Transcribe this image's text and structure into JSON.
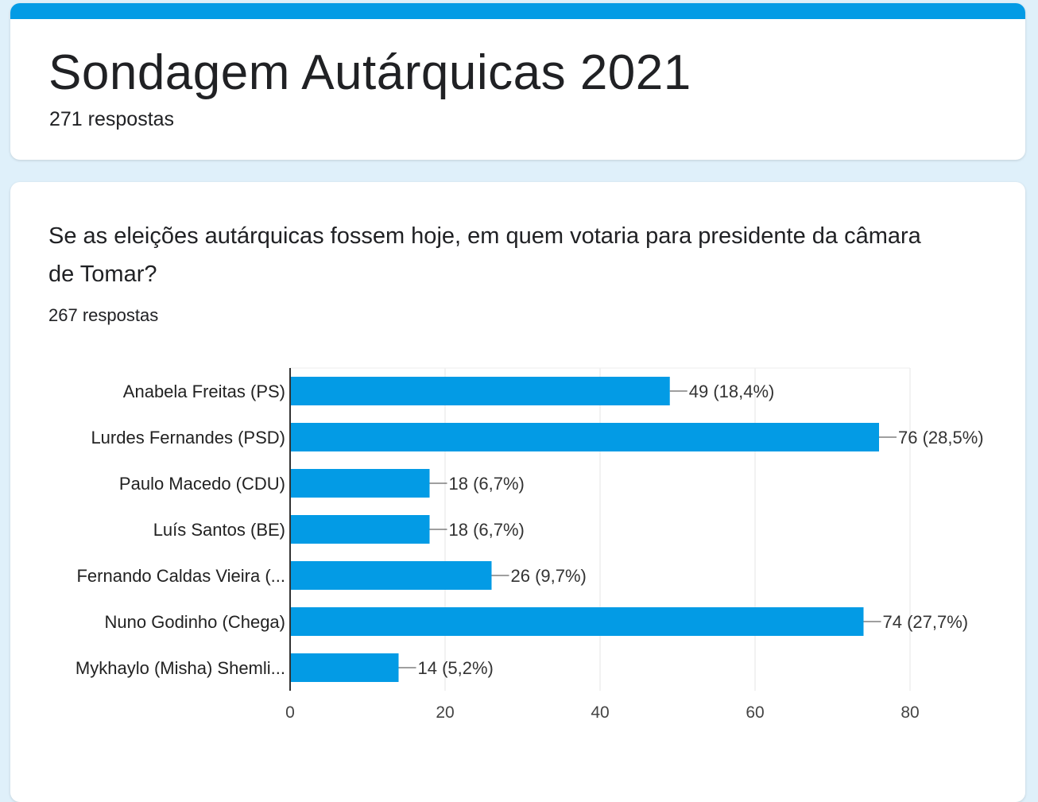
{
  "form": {
    "title": "Sondagem Autárquicas 2021",
    "responses": "271 respostas"
  },
  "question": {
    "text": "Se as eleições autárquicas fossem hoje, em quem votaria para presidente da câmara de Tomar?",
    "responses": "267 respostas"
  },
  "colors": {
    "accent": "#039be5",
    "bar": "#039be5",
    "background": "#dff0fa"
  },
  "chart_data": {
    "type": "bar",
    "orientation": "horizontal",
    "categories": [
      "Anabela Freitas (PS)",
      "Lurdes Fernandes (PSD)",
      "Paulo Macedo (CDU)",
      "Luís Santos (BE)",
      "Fernando Caldas Vieira (...",
      "Nuno Godinho (Chega)",
      "Mykhaylo (Misha) Shemli..."
    ],
    "values": [
      49,
      76,
      18,
      18,
      26,
      74,
      14
    ],
    "data_labels": [
      "49 (18,4%)",
      "76 (28,5%)",
      "18 (6,7%)",
      "18 (6,7%)",
      "26 (9,7%)",
      "74 (27,7%)",
      "14 (5,2%)"
    ],
    "x_ticks": [
      0,
      20,
      40,
      60,
      80
    ],
    "xlim": [
      0,
      80
    ],
    "grid": true,
    "title": "",
    "xlabel": "",
    "ylabel": ""
  }
}
